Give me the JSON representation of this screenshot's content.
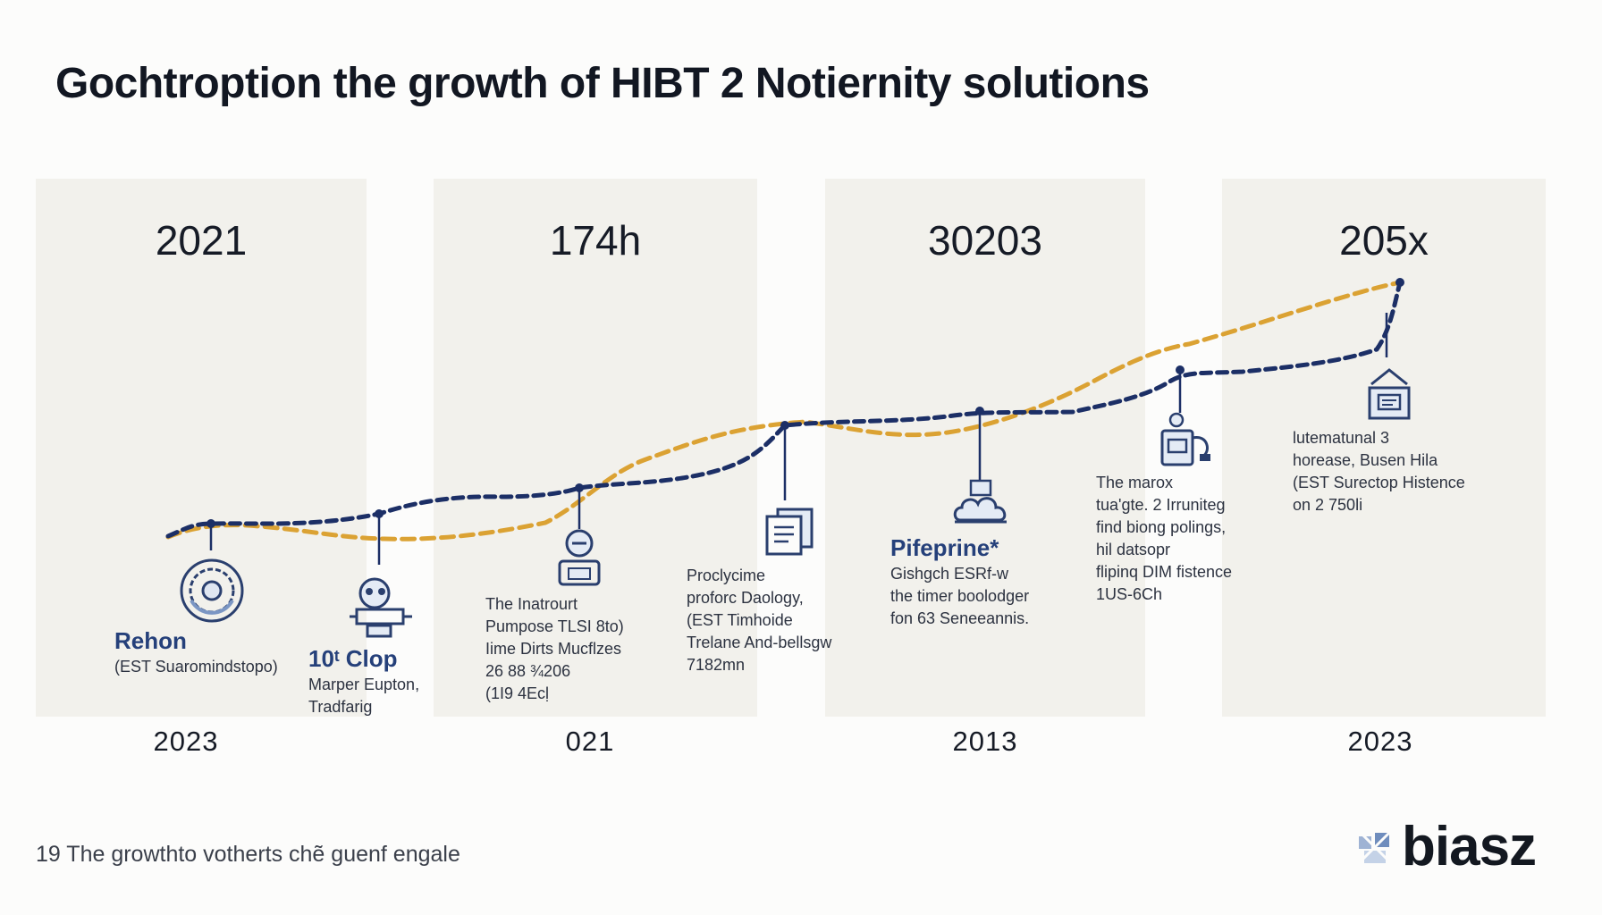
{
  "title": "Gochtroption the growth of HIBT 2 Notiernity solutions",
  "panels": [
    {
      "top_label": "2021",
      "bottom_label": "2023"
    },
    {
      "top_label": "174h",
      "bottom_label": "021"
    },
    {
      "top_label": "30203",
      "bottom_label": "2013"
    },
    {
      "top_label": "205x",
      "bottom_label": "2023"
    }
  ],
  "milestones": [
    {
      "icon": "gear-circle-icon",
      "head": "Rehon",
      "lines": [
        "(EST Suaromindstopo)"
      ]
    },
    {
      "icon": "robot-brain-icon",
      "head": "10ᵗ Clop",
      "lines": [
        "Marper Eupton,",
        "Tradfarig"
      ]
    },
    {
      "icon": "person-laptop-icon",
      "head": "",
      "lines": [
        "The Inatrourt",
        "Pumpose TLSI 8to)",
        "Iime Dirts Mucflzes",
        "26 88 ¾206",
        "(1I9 4Ecḷ"
      ]
    },
    {
      "icon": "document-stack-icon",
      "head": "",
      "lines": [
        "Proclycime",
        "proforc Daology,",
        "(EST Timhoide",
        "Trelane And-bellsgw",
        "7182mn"
      ]
    },
    {
      "icon": "cloud-server-icon",
      "head": "Pifeprine*",
      "lines": [
        "Gishgch ESRf-w",
        "the timer boolodger",
        "fon 63 Seneeannis."
      ]
    },
    {
      "icon": "device-plug-icon",
      "head": "",
      "lines": [
        "The marox",
        "tua'gte. 2 Irruniteg",
        "find biong polings,",
        "hil datsopr",
        "flipinq DIM fistence",
        "1US-6Ch"
      ]
    },
    {
      "icon": "server-box-icon",
      "head": "",
      "lines": [
        "lutematunal 3",
        "horease, Busen Hila",
        "(EST Surectop Histence",
        "on 2 750li"
      ]
    }
  ],
  "footer": "19 The growthto votherts chẽ guenf engale",
  "logo": {
    "text": "biasz",
    "icon": "logo-mark-icon"
  },
  "colors": {
    "navy": "#1c2f66",
    "gold": "#dba233",
    "panel": "#f2f1ec",
    "accent_text": "#25407a"
  }
}
